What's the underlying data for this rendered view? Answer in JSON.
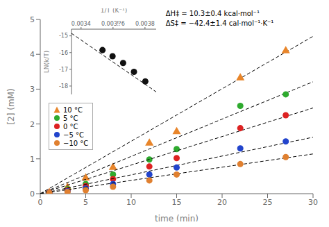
{
  "chart_data": [
    {
      "type": "scatter",
      "xlabel": "time (min)",
      "ylabel": "[2] (mM)",
      "xlim": [
        0,
        30
      ],
      "ylim": [
        0,
        5
      ],
      "xticks": [
        0,
        5,
        10,
        15,
        20,
        25,
        30
      ],
      "yticks": [
        0,
        1,
        2,
        3,
        4,
        5
      ],
      "grid": false,
      "legend": "left",
      "annotations": [
        "ΔH‡ = 10.3±0.4 kcal·mol⁻¹",
        "ΔS‡ = −42.4±1.4 cal·mol⁻¹·K⁻¹"
      ],
      "series": [
        {
          "type": "line",
          "color": "#000000",
          "line_style": "dashed",
          "x": [
            0,
            30
          ],
          "values": [
            0,
            4.515
          ]
        },
        {
          "name": "10 °C",
          "type": "scatter",
          "color": "#E8852A",
          "marker": "triangle",
          "x": [
            1,
            3,
            5,
            8,
            12,
            15,
            22,
            27
          ],
          "values": [
            0.03,
            0.18,
            0.45,
            0.75,
            1.45,
            1.78,
            3.32,
            4.1
          ]
        },
        {
          "type": "line",
          "color": "#000000",
          "line_style": "dashed",
          "x": [
            0,
            30
          ],
          "values": [
            0,
            3.21
          ]
        },
        {
          "name": "5 °C",
          "type": "scatter",
          "color": "#2EAA2E",
          "marker": "circle",
          "x": [
            1,
            3,
            5,
            8,
            12,
            15,
            22,
            27
          ],
          "values": [
            0.03,
            0.13,
            0.28,
            0.55,
            0.98,
            1.28,
            2.52,
            2.85
          ]
        },
        {
          "type": "line",
          "color": "#000000",
          "line_style": "dashed",
          "x": [
            0,
            30
          ],
          "values": [
            0,
            2.46
          ]
        },
        {
          "name": "0 °C",
          "type": "scatter",
          "color": "#DD2222",
          "marker": "circle",
          "x": [
            1,
            3,
            5,
            8,
            12,
            15,
            22,
            27
          ],
          "values": [
            0.03,
            0.1,
            0.22,
            0.42,
            0.78,
            1.02,
            1.88,
            2.25
          ]
        },
        {
          "type": "line",
          "color": "#000000",
          "line_style": "dashed",
          "x": [
            0,
            30
          ],
          "values": [
            0,
            1.62
          ]
        },
        {
          "name": "−5 °C",
          "type": "scatter",
          "color": "#2244CC",
          "marker": "circle",
          "x": [
            1,
            3,
            5,
            8,
            12,
            15,
            22,
            27
          ],
          "values": [
            0.02,
            0.07,
            0.15,
            0.28,
            0.55,
            0.75,
            1.3,
            1.5
          ]
        },
        {
          "type": "line",
          "color": "#000000",
          "line_style": "dashed",
          "x": [
            0,
            30
          ],
          "values": [
            0,
            1.14
          ]
        },
        {
          "name": "−10 °C",
          "type": "scatter",
          "color": "#E08030",
          "marker": "circle",
          "x": [
            1,
            3,
            5,
            8,
            12,
            15,
            22,
            27
          ],
          "values": [
            0.02,
            0.05,
            0.1,
            0.2,
            0.38,
            0.55,
            0.85,
            1.05
          ]
        }
      ]
    },
    {
      "type": "scatter",
      "xlabel": "1/T (K⁻¹)",
      "ylabel": "LN(k/T)",
      "xlim": [
        0.00334,
        0.00387
      ],
      "ylim": [
        -18.5,
        -14.6
      ],
      "xticks": [
        0.0034,
        {
          "value": 0.0036,
          "label": "0.003⁉6"
        },
        0.0038
      ],
      "yticks": [
        -15,
        -16,
        -17,
        -18
      ],
      "grid": false,
      "series": [
        {
          "type": "scatter",
          "color": "#111111",
          "marker": "circle",
          "x": [
            0.003534,
            0.003597,
            0.003663,
            0.003731,
            0.003802
          ],
          "values": [
            -15.85,
            -16.22,
            -16.62,
            -17.15,
            -17.72
          ]
        },
        {
          "type": "line",
          "color": "#000000",
          "line_style": "dashed",
          "x": [
            0.00334,
            0.00387
          ],
          "values": [
            -14.85,
            -18.35
          ]
        }
      ]
    }
  ]
}
